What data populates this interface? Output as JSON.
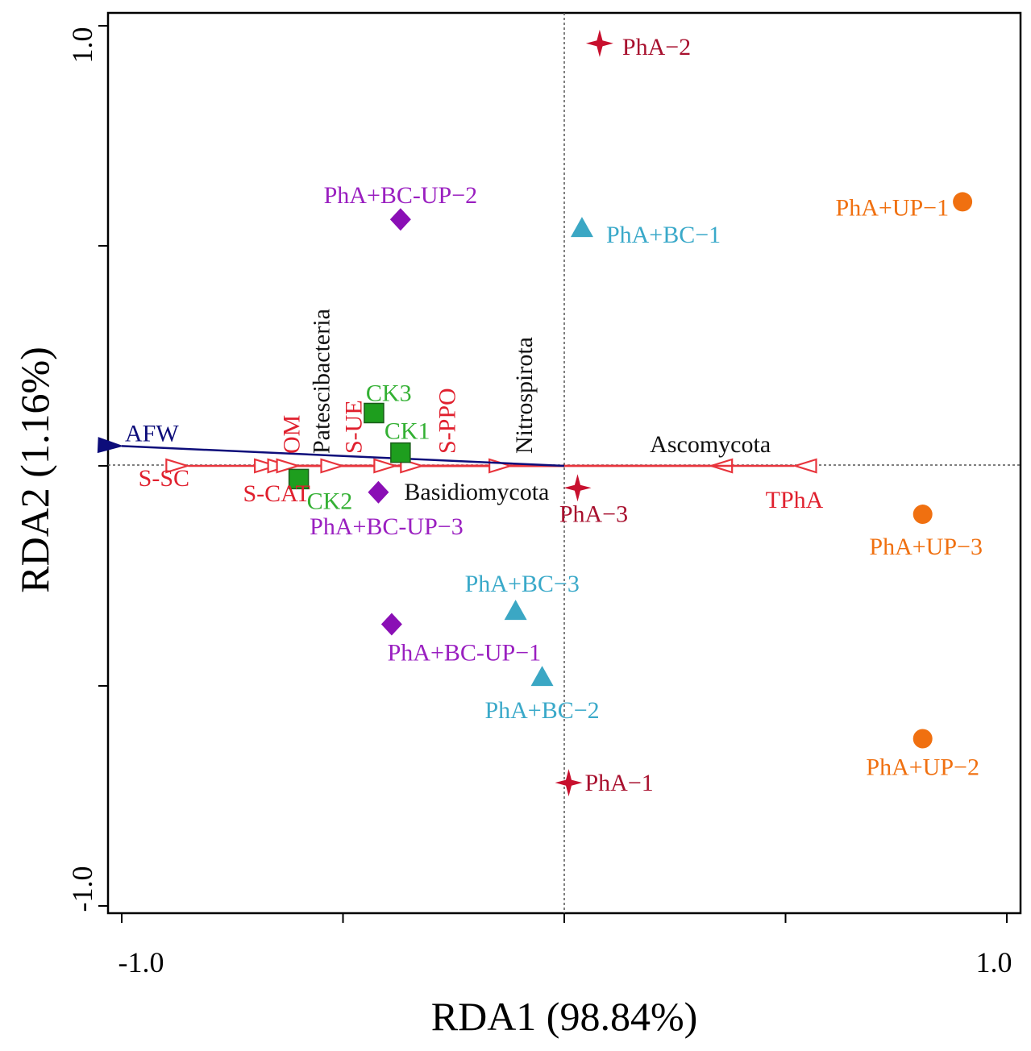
{
  "chart_data": {
    "type": "scatter",
    "subtype": "RDA biplot",
    "xlabel": "RDA1 (98.84%)",
    "ylabel": "RDA2 (1.16%)",
    "xlim": [
      -1.0,
      1.0
    ],
    "ylim": [
      -1.0,
      1.0
    ],
    "x_tick_labels": [
      "-1.0",
      "1.0"
    ],
    "y_tick_labels": [
      "-1.0",
      "1.0"
    ],
    "colors": {
      "response": "#e8343c",
      "explanatory": "#0d0d7a",
      "axis": "#000000",
      "zero_line": "#555555"
    },
    "explanatory_vectors": [
      {
        "name": "AFW",
        "x": -1.0,
        "y": 0.045,
        "color": "#0d0d7a"
      }
    ],
    "response_vectors": [
      {
        "name": "S-SC",
        "x": -0.85,
        "y": 0.0
      },
      {
        "name": "S-CAT",
        "x": -0.65,
        "y": 0.0
      },
      {
        "name": "OM",
        "x": -0.62,
        "y": 0.0
      },
      {
        "name": "Patescibacteria",
        "x": -0.6,
        "y": 0.0
      },
      {
        "name": "S-UE",
        "x": -0.5,
        "y": 0.0
      },
      {
        "name": "Basidiomycota",
        "x": -0.38,
        "y": 0.0
      },
      {
        "name": "S-PPO",
        "x": -0.32,
        "y": 0.0
      },
      {
        "name": "Nitrospirota",
        "x": -0.12,
        "y": 0.0
      },
      {
        "name": "Ascomycota",
        "x": 0.33,
        "y": 0.0
      },
      {
        "name": "TPhA",
        "x": 0.52,
        "y": 0.0
      }
    ],
    "series": [
      {
        "name": "CK",
        "marker": "square",
        "color": "#1e9e1e",
        "label_color": "#33b033",
        "points": [
          {
            "label": "CK1",
            "x": -0.37,
            "y": 0.03
          },
          {
            "label": "CK2",
            "x": -0.6,
            "y": -0.03
          },
          {
            "label": "CK3",
            "x": -0.43,
            "y": 0.12
          }
        ]
      },
      {
        "name": "PhA",
        "marker": "star",
        "color": "#c8102e",
        "label_color": "#a8102e",
        "points": [
          {
            "label": "PhA−1",
            "x": 0.01,
            "y": -0.72
          },
          {
            "label": "PhA−2",
            "x": 0.08,
            "y": 0.96
          },
          {
            "label": "PhA−3",
            "x": 0.03,
            "y": -0.05
          }
        ]
      },
      {
        "name": "PhA+BC",
        "marker": "triangle",
        "color": "#3ba7c4",
        "label_color": "#3aa9c9",
        "points": [
          {
            "label": "PhA+BC−1",
            "x": 0.04,
            "y": 0.54
          },
          {
            "label": "PhA+BC−2",
            "x": -0.05,
            "y": -0.48
          },
          {
            "label": "PhA+BC−3",
            "x": -0.11,
            "y": -0.33
          }
        ]
      },
      {
        "name": "PhA+BC-UP",
        "marker": "diamond",
        "color": "#8a0fb5",
        "label_color": "#9a1fc0",
        "points": [
          {
            "label": "PhA+BC-UP−1",
            "x": -0.39,
            "y": -0.36
          },
          {
            "label": "PhA+BC-UP−2",
            "x": -0.37,
            "y": 0.56
          },
          {
            "label": "PhA+BC-UP−3",
            "x": -0.42,
            "y": -0.06
          }
        ]
      },
      {
        "name": "PhA+UP",
        "marker": "circle",
        "color": "#f07010",
        "label_color": "#f07010",
        "points": [
          {
            "label": "PhA+UP−1",
            "x": 0.9,
            "y": 0.6
          },
          {
            "label": "PhA+UP−2",
            "x": 0.81,
            "y": -0.62
          },
          {
            "label": "PhA+UP−3",
            "x": 0.81,
            "y": -0.11
          }
        ]
      }
    ]
  }
}
